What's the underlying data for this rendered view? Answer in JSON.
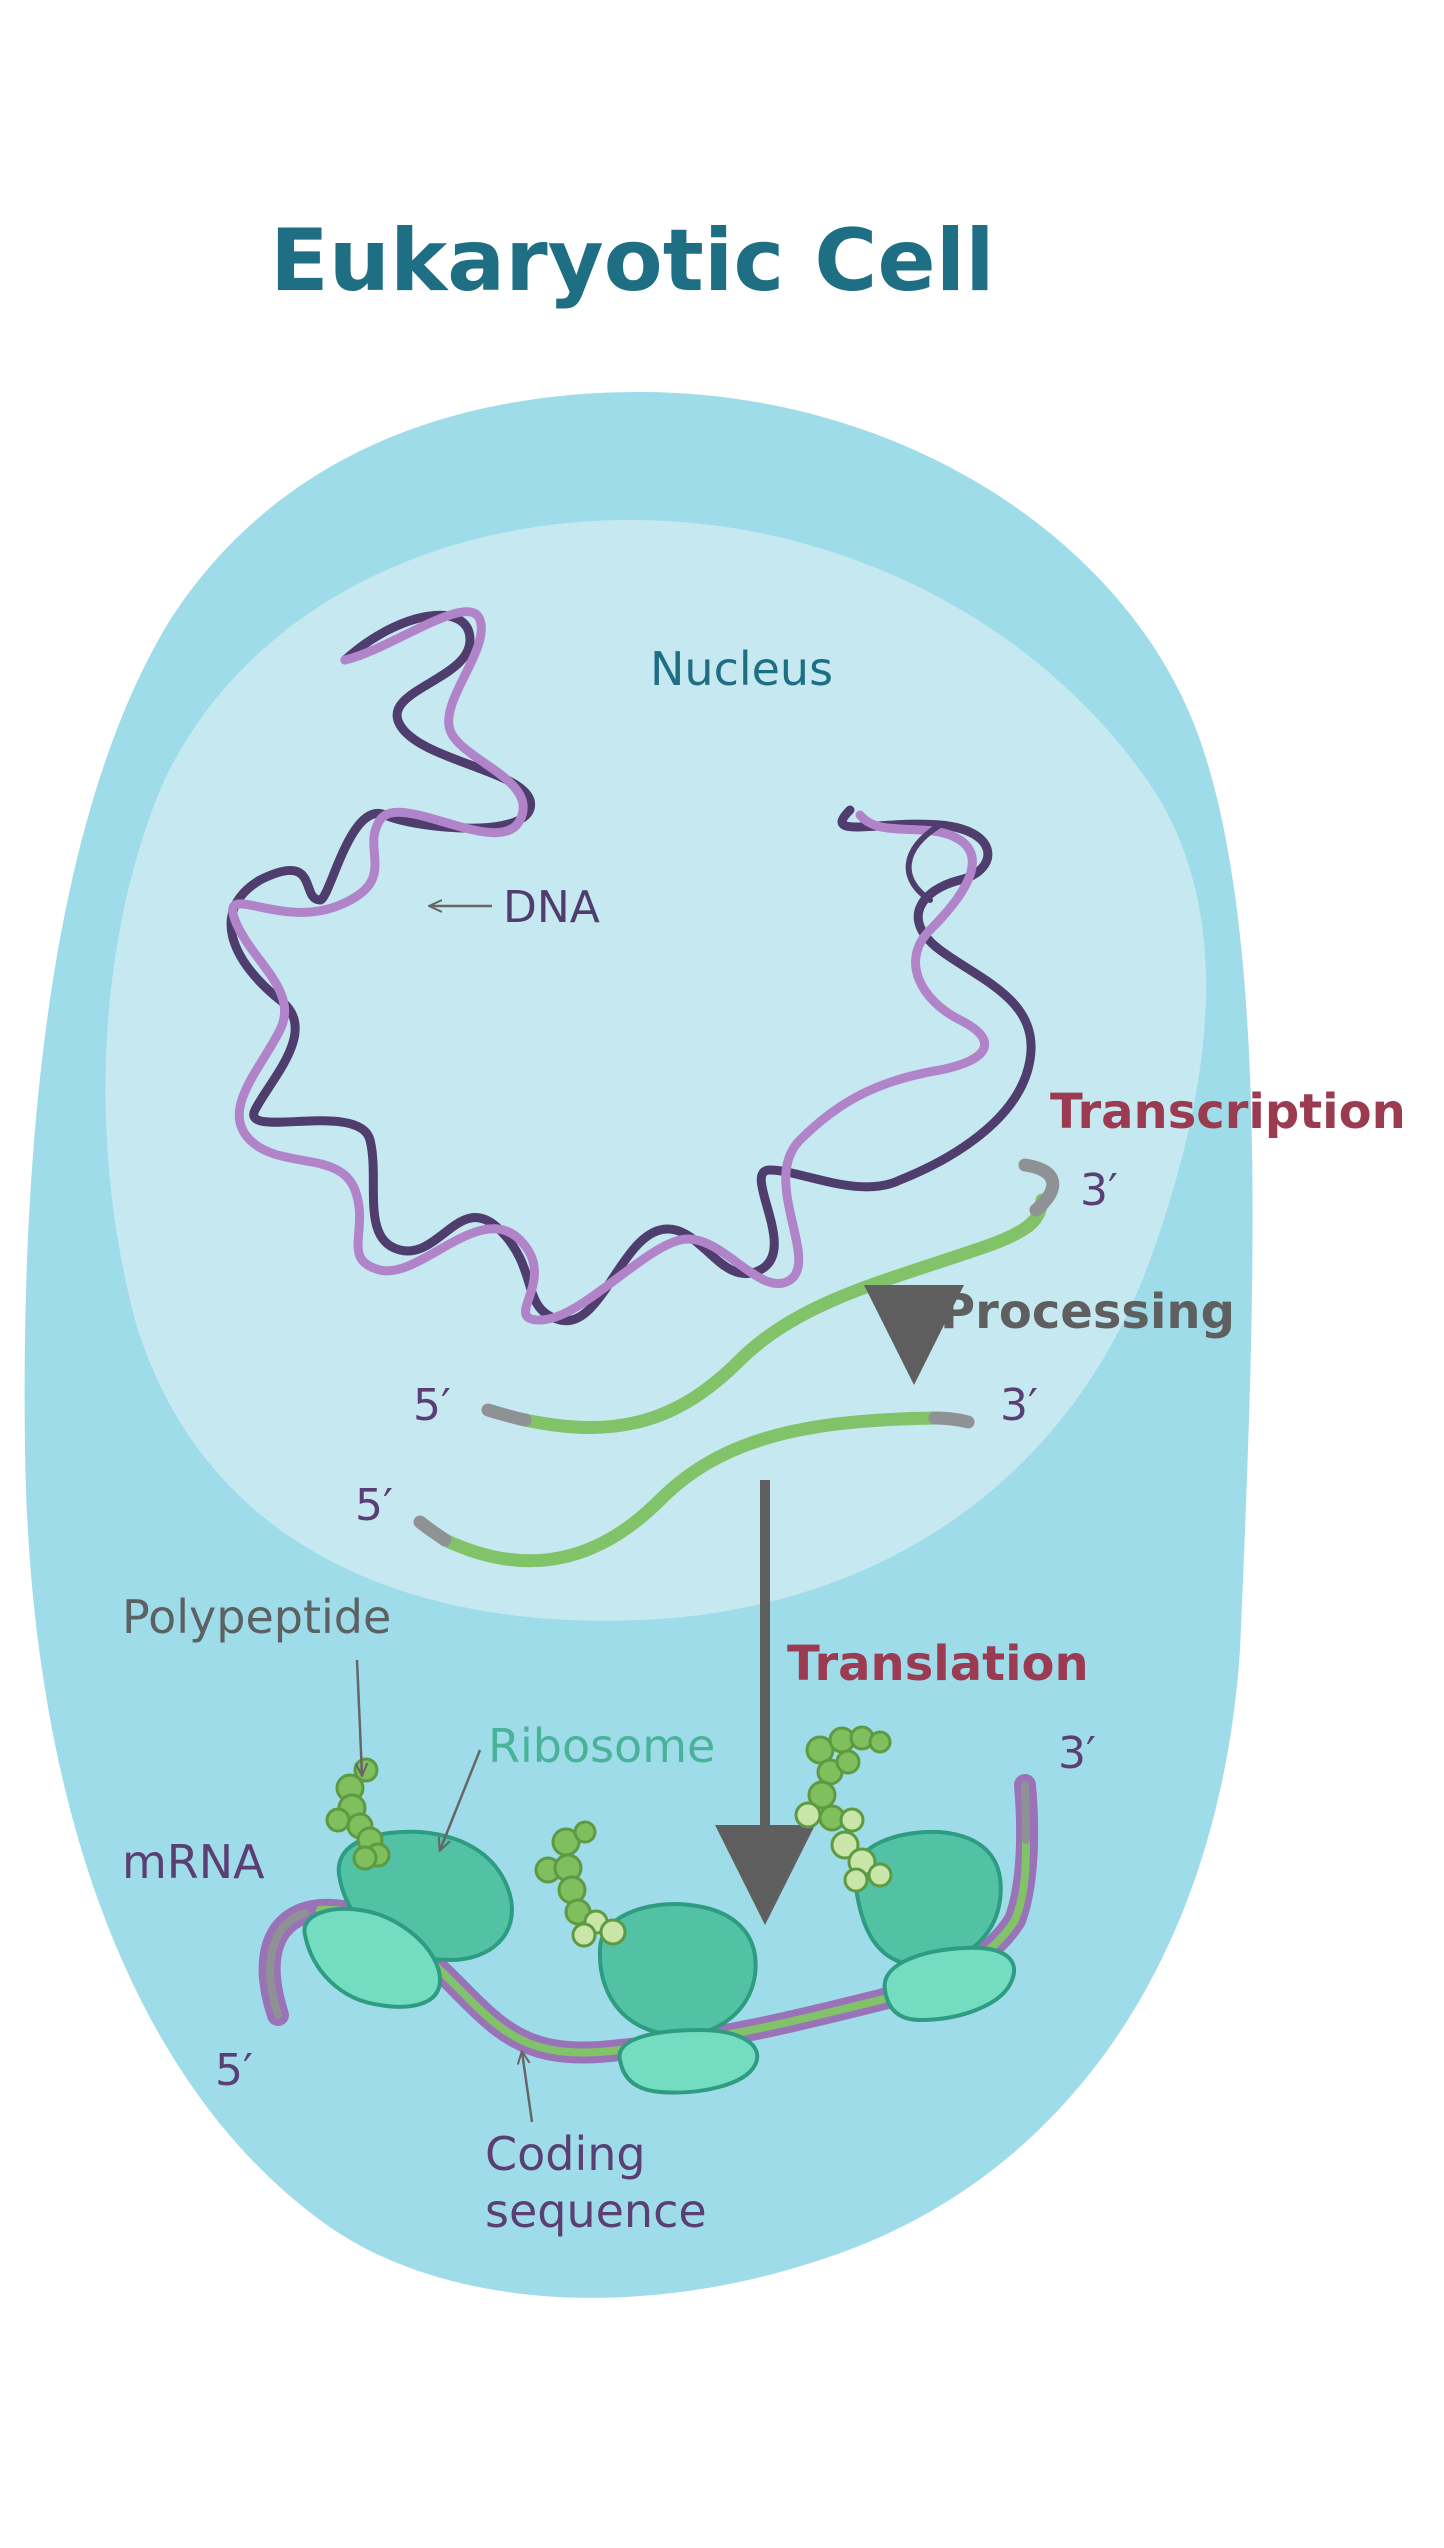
{
  "title": "Eukaryotic Cell",
  "labels": {
    "nucleus": "Nucleus",
    "dna": "DNA",
    "transcription": "Transcription",
    "processing": "Processing",
    "translation": "Translation",
    "polypeptide": "Polypeptide",
    "ribosome": "Ribosome",
    "mrna": "mRNA",
    "coding_line1": "Coding",
    "coding_line2": "sequence"
  },
  "ends": {
    "pre_mrna_3": "3′",
    "pre_mrna_5": "5′",
    "processed_3": "3′",
    "mature_5": "5′",
    "cytoplasm_3": "3′",
    "cytoplasm_5": "5′"
  },
  "colors": {
    "title": "#1f6f84",
    "cell": "#9fdcea",
    "nucleus": "#c6e9f1",
    "dna_dark": "#4f3d6e",
    "dna_light": "#b184c9",
    "mrna_green": "#82c36a",
    "cap_gray": "#8f9294",
    "process_red": "#9b3b52",
    "arrow_gray": "#5f5f60",
    "ribosome_large": "#52c1a4",
    "ribosome_small": "#74dcc0",
    "ribosome_stroke": "#2e9c80",
    "mrna_purple": "#9a72b8",
    "peptide": "#7fbf5e",
    "peptide_light": "#c9e6a8",
    "end_label": "#5b3e74",
    "polypeptide_label": "#5c6163",
    "ribosome_label": "#49b39a"
  }
}
